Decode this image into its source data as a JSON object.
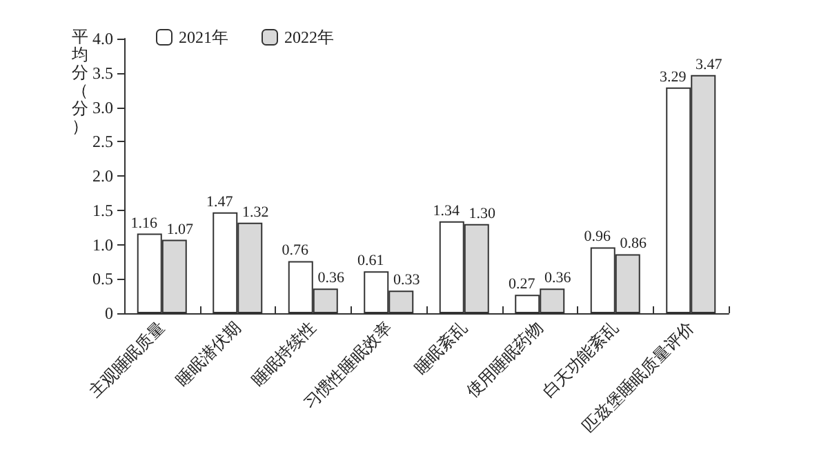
{
  "chart_data": {
    "type": "bar",
    "ylabel": "平均分（分）",
    "categories": [
      "主观睡眠质量",
      "睡眠潜伏期",
      "睡眠持续性",
      "习惯性睡眠效率",
      "睡眠紊乱",
      "使用睡眠药物",
      "白天功能紊乱",
      "匹兹堡睡眠质量评价"
    ],
    "series": [
      {
        "name": "2021年",
        "color": "#ffffff",
        "values": [
          1.16,
          1.47,
          0.76,
          0.61,
          1.34,
          0.27,
          0.96,
          3.29
        ]
      },
      {
        "name": "2022年",
        "color": "#d9d9d9",
        "values": [
          1.07,
          1.32,
          0.36,
          0.33,
          1.3,
          0.36,
          0.86,
          3.47
        ],
        "value_labels": [
          "1.07",
          "1.32",
          "0.36",
          "0.33",
          "1.30",
          "0.36",
          "0.86",
          "3.47"
        ]
      }
    ],
    "ylim": [
      0,
      4
    ],
    "yticks": [
      0,
      0.5,
      {
        "value": 1,
        "label": "1.0"
      },
      1.5,
      {
        "value": 2,
        "label": "2.0"
      },
      2.5,
      {
        "value": 3,
        "label": "3.0"
      },
      3.5,
      {
        "value": 4,
        "label": "4.0"
      }
    ],
    "data_labels": true,
    "legend": "top left",
    "grid": false
  }
}
